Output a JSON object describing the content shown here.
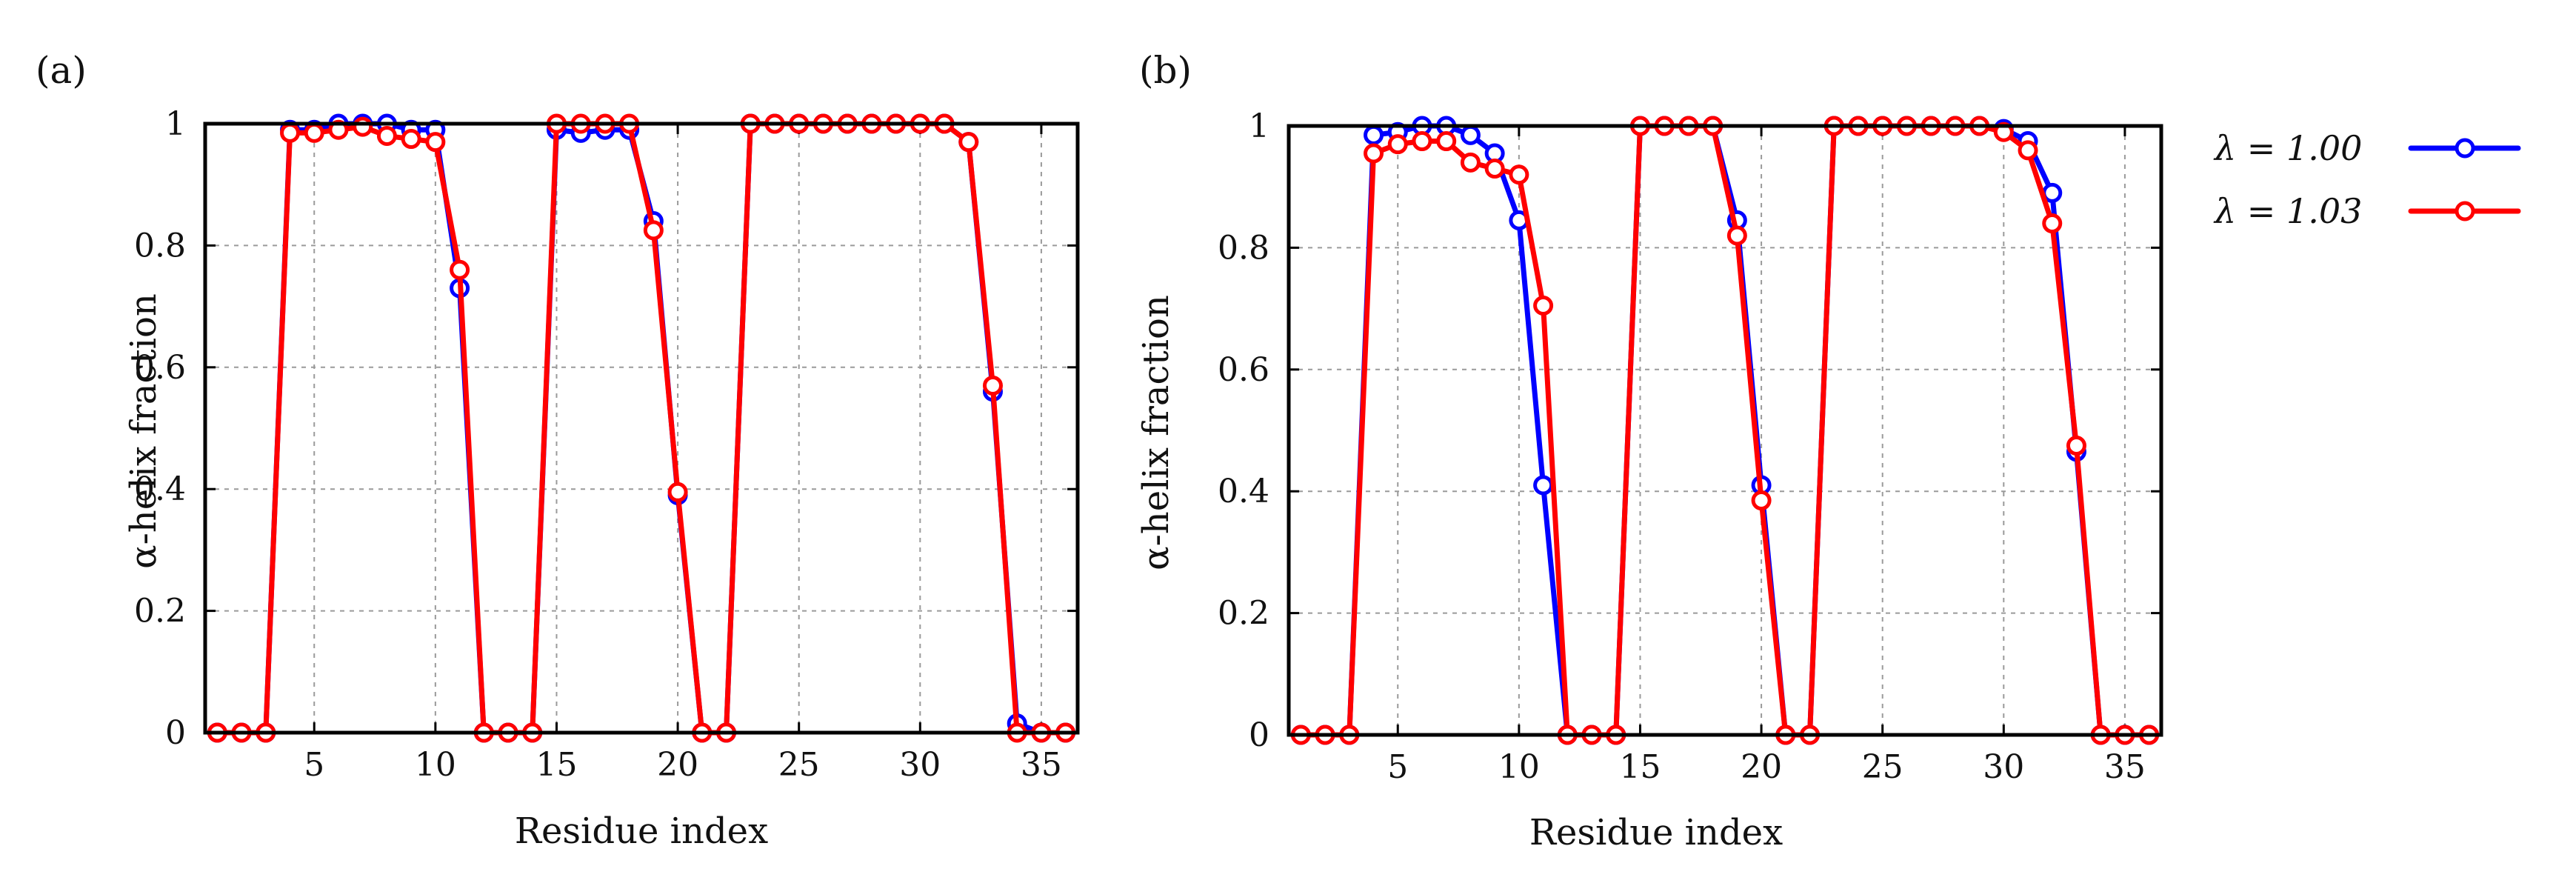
{
  "chart_data": [
    {
      "type": "line",
      "panel_label": "(a)",
      "xlabel": "Residue index",
      "ylabel": "α-helix fraction",
      "xlim": [
        0.5,
        36.5
      ],
      "ylim": [
        0,
        1
      ],
      "xticks": [
        5,
        10,
        15,
        20,
        25,
        30,
        35
      ],
      "yticks": [
        0,
        0.2,
        0.4,
        0.6,
        0.8,
        1
      ],
      "ytick_labels": [
        "0",
        "0.2",
        "0.4",
        "0.6",
        "0.8",
        "1"
      ],
      "grid": true,
      "x": [
        1,
        2,
        3,
        4,
        5,
        6,
        7,
        8,
        9,
        10,
        11,
        12,
        13,
        14,
        15,
        16,
        17,
        18,
        19,
        20,
        21,
        22,
        23,
        24,
        25,
        26,
        27,
        28,
        29,
        30,
        31,
        32,
        33,
        34,
        35,
        36
      ],
      "series": [
        {
          "name": "λ = 1.00",
          "color": "#0000ff",
          "values": [
            0,
            0,
            0,
            0.99,
            0.99,
            1.0,
            1.0,
            1.0,
            0.99,
            0.99,
            0.73,
            0,
            0,
            0,
            0.99,
            0.985,
            0.99,
            0.99,
            0.84,
            0.39,
            0,
            0,
            1.0,
            1.0,
            1.0,
            1.0,
            1.0,
            1.0,
            1.0,
            1.0,
            1.0,
            0.97,
            0.56,
            0.015,
            0,
            0
          ]
        },
        {
          "name": "λ = 1.03",
          "color": "#ff0000",
          "values": [
            0,
            0,
            0,
            0.985,
            0.985,
            0.99,
            0.995,
            0.98,
            0.975,
            0.97,
            0.76,
            0,
            0,
            0,
            1.0,
            1.0,
            1.0,
            1.0,
            0.825,
            0.395,
            0,
            0,
            1.0,
            1.0,
            1.0,
            1.0,
            1.0,
            1.0,
            1.0,
            1.0,
            1.0,
            0.97,
            0.57,
            0,
            0,
            0
          ]
        }
      ]
    },
    {
      "type": "line",
      "panel_label": "(b)",
      "xlabel": "Residue index",
      "ylabel": "α-helix fraction",
      "xlim": [
        0.5,
        36.5
      ],
      "ylim": [
        0,
        1
      ],
      "xticks": [
        5,
        10,
        15,
        20,
        25,
        30,
        35
      ],
      "yticks": [
        0,
        0.2,
        0.4,
        0.6,
        0.8,
        1
      ],
      "ytick_labels": [
        "0",
        "0.2",
        "0.4",
        "0.6",
        "0.8",
        "1"
      ],
      "grid": true,
      "x": [
        1,
        2,
        3,
        4,
        5,
        6,
        7,
        8,
        9,
        10,
        11,
        12,
        13,
        14,
        15,
        16,
        17,
        18,
        19,
        20,
        21,
        22,
        23,
        24,
        25,
        26,
        27,
        28,
        29,
        30,
        31,
        32,
        33,
        34,
        35,
        36
      ],
      "series": [
        {
          "name": "λ = 1.00",
          "color": "#0000ff",
          "values": [
            0,
            0,
            0,
            0.985,
            0.99,
            1.0,
            1.0,
            0.985,
            0.955,
            0.845,
            0.41,
            0,
            0,
            0,
            1.0,
            1.0,
            1.0,
            1.0,
            0.845,
            0.41,
            0,
            0,
            1.0,
            1.0,
            1.0,
            1.0,
            1.0,
            1.0,
            1.0,
            0.995,
            0.975,
            0.89,
            0.465,
            0,
            0,
            0
          ]
        },
        {
          "name": "λ = 1.03",
          "color": "#ff0000",
          "values": [
            0,
            0,
            0,
            0.955,
            0.97,
            0.975,
            0.975,
            0.94,
            0.93,
            0.92,
            0.705,
            0,
            0,
            0,
            1.0,
            1.0,
            1.0,
            1.0,
            0.82,
            0.385,
            0,
            0,
            1.0,
            1.0,
            1.0,
            1.0,
            1.0,
            1.0,
            1.0,
            0.99,
            0.96,
            0.84,
            0.475,
            0,
            0,
            0
          ]
        }
      ]
    }
  ],
  "legend": {
    "position": "right",
    "entries": [
      {
        "label": "λ = 1.00",
        "color": "#0000ff"
      },
      {
        "label": "λ = 1.03",
        "color": "#ff0000"
      }
    ]
  }
}
